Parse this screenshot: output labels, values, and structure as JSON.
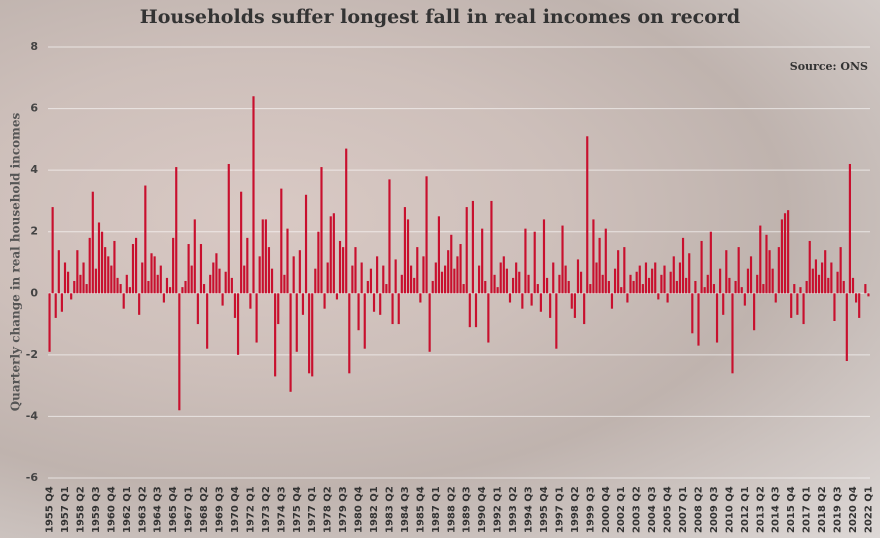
{
  "chart_data": {
    "type": "bar",
    "title": "Households suffer longest fall in real incomes on record",
    "source": "Source: ONS",
    "y_label": "Quarterly change in real household incomes",
    "color": "#c8102e",
    "ylim": [
      -6,
      8
    ],
    "yticks": [
      -6,
      -4,
      -2,
      0,
      2,
      4,
      6,
      8
    ],
    "grid": true,
    "categories": [
      "1955 Q4",
      null,
      null,
      null,
      null,
      "1957 Q1",
      null,
      null,
      null,
      null,
      "1958 Q2",
      null,
      null,
      null,
      null,
      "1959 Q3",
      null,
      null,
      null,
      null,
      "1960 Q4",
      null,
      null,
      null,
      null,
      "1962 Q1",
      null,
      null,
      null,
      null,
      "1963 Q2",
      null,
      null,
      null,
      null,
      "1964 Q3",
      null,
      null,
      null,
      null,
      "1965 Q4",
      null,
      null,
      null,
      null,
      "1967 Q1",
      null,
      null,
      null,
      null,
      "1968 Q2",
      null,
      null,
      null,
      null,
      "1969 Q3",
      null,
      null,
      null,
      null,
      "1970 Q4",
      null,
      null,
      null,
      null,
      "1972 Q1",
      null,
      null,
      null,
      null,
      "1973 Q2",
      null,
      null,
      null,
      null,
      "1974 Q3",
      null,
      null,
      null,
      null,
      "1975 Q4",
      null,
      null,
      null,
      null,
      "1977 Q1",
      null,
      null,
      null,
      null,
      "1978 Q2",
      null,
      null,
      null,
      null,
      "1979 Q3",
      null,
      null,
      null,
      null,
      "1980 Q4",
      null,
      null,
      null,
      null,
      "1982 Q1",
      null,
      null,
      null,
      null,
      "1983 Q2",
      null,
      null,
      null,
      null,
      "1984 Q3",
      null,
      null,
      null,
      null,
      "1985 Q4",
      null,
      null,
      null,
      null,
      "1987 Q1",
      null,
      null,
      null,
      null,
      "1988 Q2",
      null,
      null,
      null,
      null,
      "1989 Q3",
      null,
      null,
      null,
      null,
      "1990 Q4",
      null,
      null,
      null,
      null,
      "1992 Q1",
      null,
      null,
      null,
      null,
      "1993 Q2",
      null,
      null,
      null,
      null,
      "1994 Q3",
      null,
      null,
      null,
      null,
      "1995 Q4",
      null,
      null,
      null,
      null,
      "1997 Q1",
      null,
      null,
      null,
      null,
      "1998 Q2",
      null,
      null,
      null,
      null,
      "1999 Q3",
      null,
      null,
      null,
      null,
      "2000 Q4",
      null,
      null,
      null,
      null,
      "2002 Q1",
      null,
      null,
      null,
      null,
      "2003 Q2",
      null,
      null,
      null,
      null,
      "2004 Q3",
      null,
      null,
      null,
      null,
      "2005 Q4",
      null,
      null,
      null,
      null,
      "2007 Q1",
      null,
      null,
      null,
      null,
      "2008 Q2",
      null,
      null,
      null,
      null,
      "2009 Q3",
      null,
      null,
      null,
      null,
      "2010 Q4",
      null,
      null,
      null,
      null,
      "2012 Q1",
      null,
      null,
      null,
      null,
      "2013 Q2",
      null,
      null,
      null,
      null,
      "2014 Q3",
      null,
      null,
      null,
      null,
      "2015 Q4",
      null,
      null,
      null,
      null,
      "2017 Q1",
      null,
      null,
      null,
      null,
      "2018 Q2",
      null,
      null,
      null,
      null,
      "2019 Q3",
      null,
      null,
      null,
      null,
      "2020 Q4",
      null,
      null,
      null,
      null,
      "2022 Q1"
    ],
    "values": [
      -1.9,
      2.8,
      -0.8,
      1.4,
      -0.6,
      1.0,
      0.7,
      -0.2,
      0.4,
      1.4,
      0.6,
      1.0,
      0.3,
      1.8,
      3.3,
      0.8,
      2.3,
      2.0,
      1.5,
      1.2,
      0.9,
      1.7,
      0.5,
      0.3,
      -0.5,
      0.6,
      0.2,
      1.6,
      1.8,
      -0.7,
      1.0,
      3.5,
      0.4,
      1.3,
      1.2,
      0.6,
      0.9,
      -0.3,
      0.5,
      0.2,
      1.8,
      4.1,
      -3.8,
      0.2,
      0.4,
      1.6,
      0.9,
      2.4,
      -1.0,
      1.6,
      0.3,
      -1.8,
      0.6,
      1.0,
      1.3,
      0.8,
      -0.4,
      0.7,
      4.2,
      0.5,
      -0.8,
      -2.0,
      3.3,
      0.9,
      1.8,
      -0.5,
      6.4,
      -1.6,
      1.2,
      2.4,
      2.4,
      1.5,
      0.8,
      -2.7,
      -1.0,
      3.4,
      0.6,
      2.1,
      -3.2,
      1.2,
      -1.9,
      1.4,
      -0.7,
      3.2,
      -2.6,
      -2.7,
      0.8,
      2.0,
      4.1,
      -0.5,
      1.0,
      2.5,
      2.6,
      -0.2,
      1.7,
      1.5,
      4.7,
      -2.6,
      0.9,
      1.5,
      -1.2,
      1.0,
      -1.8,
      0.4,
      0.8,
      -0.6,
      1.2,
      -0.7,
      0.9,
      0.3,
      3.7,
      -1.0,
      1.1,
      -1.0,
      0.6,
      2.8,
      2.4,
      0.9,
      0.5,
      1.5,
      -0.3,
      1.2,
      3.8,
      -1.9,
      0.4,
      1.0,
      2.5,
      0.7,
      0.9,
      1.4,
      1.9,
      0.8,
      1.2,
      1.6,
      0.3,
      2.8,
      -1.1,
      3.0,
      -1.1,
      0.9,
      2.1,
      0.4,
      -1.6,
      3.0,
      0.6,
      0.2,
      1.0,
      1.2,
      0.8,
      -0.3,
      0.5,
      1.0,
      0.7,
      -0.5,
      2.1,
      0.6,
      -0.4,
      2.0,
      0.3,
      -0.6,
      2.4,
      0.5,
      -0.8,
      1.0,
      -1.8,
      0.6,
      2.2,
      0.9,
      0.4,
      -0.5,
      -0.8,
      1.1,
      0.7,
      -1.0,
      5.1,
      0.3,
      2.4,
      1.0,
      1.8,
      0.6,
      2.1,
      0.4,
      -0.5,
      0.8,
      1.4,
      0.2,
      1.5,
      -0.3,
      0.6,
      0.4,
      0.7,
      0.9,
      0.3,
      1.0,
      0.5,
      0.8,
      1.0,
      -0.2,
      0.6,
      0.9,
      -0.3,
      0.7,
      1.2,
      0.4,
      1.0,
      1.8,
      0.5,
      1.3,
      -1.3,
      0.4,
      -1.7,
      1.7,
      0.2,
      0.6,
      2.0,
      0.3,
      -1.6,
      0.8,
      -0.7,
      1.4,
      0.5,
      -2.6,
      0.4,
      1.5,
      0.2,
      -0.4,
      0.8,
      1.2,
      -1.2,
      0.6,
      2.2,
      0.3,
      1.9,
      1.4,
      0.8,
      -0.3,
      1.5,
      2.4,
      2.6,
      2.7,
      -0.8,
      0.3,
      -0.7,
      0.2,
      -1.0,
      0.4,
      1.7,
      0.8,
      1.1,
      0.6,
      1.0,
      1.4,
      0.5,
      1.0,
      -0.9,
      0.7,
      1.5,
      0.4,
      -2.2,
      4.2,
      0.5,
      -0.3,
      -0.8,
      0.0,
      0.3,
      -0.1
    ]
  }
}
